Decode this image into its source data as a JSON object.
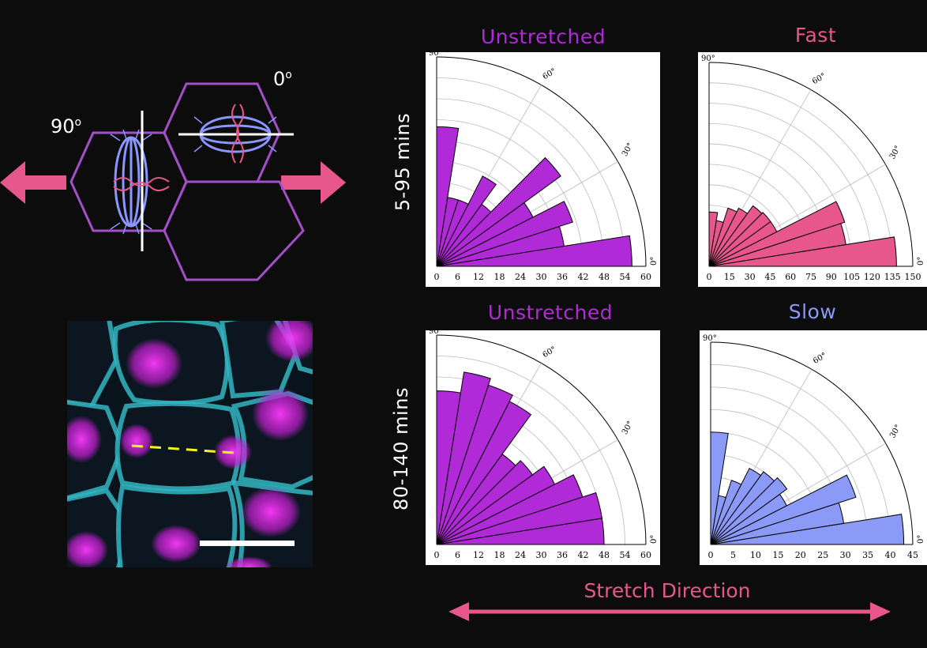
{
  "diagram": {
    "label_90": "90",
    "label_0": "0",
    "degree_mark": "o"
  },
  "rows": [
    {
      "label": "5-95 mins"
    },
    {
      "label": "80-140 mins"
    }
  ],
  "stretch_label": "Stretch Direction",
  "colors": {
    "unstretched": "#b02ad8",
    "fast": "#e8578c",
    "slow": "#8b99f7",
    "cell_outline": "#a24fc8",
    "spindle": "#8b96ff",
    "arrow": "#e8578c"
  },
  "chart_data": [
    {
      "type": "polar_bar",
      "title": "Unstretched",
      "title_color": "#b02ad8",
      "fill": "#b02ad8",
      "theta_range_deg": [
        0,
        90
      ],
      "theta_ticks": [
        "0°",
        "30°",
        "60°",
        "90°"
      ],
      "rmax": 60,
      "r_ticks": [
        "0",
        "6",
        "12",
        "18",
        "24",
        "30",
        "36",
        "42",
        "48",
        "54",
        "60"
      ],
      "bin_width_deg": 9,
      "bin_start_deg": [
        0,
        9,
        18,
        27,
        36,
        45,
        54,
        63,
        72,
        81
      ],
      "values": [
        56,
        37,
        41,
        31,
        44,
        22,
        29,
        20,
        20,
        40
      ]
    },
    {
      "type": "polar_bar",
      "title": "Fast",
      "title_color": "#e8578c",
      "fill": "#e8578c",
      "theta_range_deg": [
        0,
        90
      ],
      "theta_ticks": [
        "0°",
        "30°",
        "60°",
        "90°"
      ],
      "rmax": 150,
      "r_ticks": [
        "0",
        "15",
        "30",
        "45",
        "60",
        "75",
        "90",
        "105",
        "120",
        "135",
        "150"
      ],
      "bin_width_deg": 9,
      "bin_start_deg": [
        0,
        9,
        18,
        27,
        36,
        45,
        54,
        63,
        72,
        81
      ],
      "values": [
        138,
        102,
        105,
        56,
        56,
        55,
        48,
        45,
        34,
        40
      ]
    },
    {
      "type": "polar_bar",
      "title": "Unstretched",
      "title_color": "#b02ad8",
      "fill": "#b02ad8",
      "theta_range_deg": [
        0,
        90
      ],
      "theta_ticks": [
        "0°",
        "30°",
        "60°",
        "90°"
      ],
      "rmax": 60,
      "r_ticks": [
        "0",
        "6",
        "12",
        "18",
        "24",
        "30",
        "36",
        "42",
        "48",
        "54",
        "60"
      ],
      "bin_width_deg": 9,
      "bin_start_deg": [
        0,
        9,
        18,
        27,
        36,
        45,
        54,
        63,
        72,
        81
      ],
      "values": [
        48,
        48,
        44,
        38,
        34,
        32,
        46,
        48,
        50,
        44
      ]
    },
    {
      "type": "polar_bar",
      "title": "Slow",
      "title_color": "#8b99f7",
      "fill": "#8b99f7",
      "theta_range_deg": [
        0,
        90
      ],
      "theta_ticks": [
        "0°",
        "30°",
        "60°",
        "90°"
      ],
      "rmax": 45,
      "r_ticks": [
        "0",
        "5",
        "10",
        "15",
        "20",
        "25",
        "30",
        "35",
        "40",
        "45"
      ],
      "bin_width_deg": 9,
      "bin_start_deg": [
        0,
        9,
        18,
        27,
        36,
        45,
        54,
        63,
        72,
        81
      ],
      "values": [
        43,
        30,
        34,
        19,
        21,
        20,
        19,
        15,
        11,
        25
      ]
    }
  ]
}
